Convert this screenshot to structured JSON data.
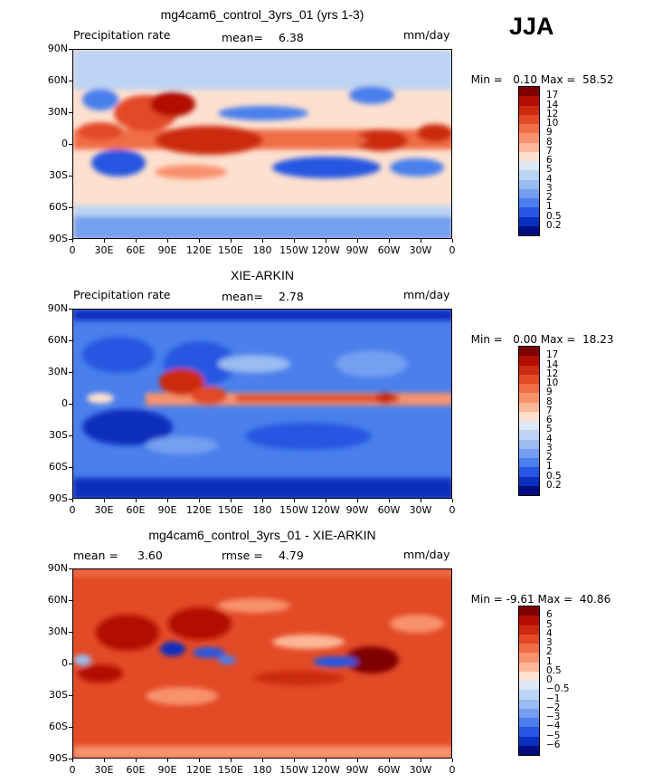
{
  "season": "JJA",
  "units": "mm/day",
  "lat_labels": [
    "90N",
    "60N",
    "30N",
    "0",
    "30S",
    "60S",
    "90S"
  ],
  "lon_labels": [
    "0",
    "30E",
    "60E",
    "90E",
    "120E",
    "150E",
    "180",
    "150W",
    "120W",
    "90W",
    "60W",
    "30W",
    "0"
  ],
  "panels": [
    {
      "title": "mg4cam6_control_3yrs_01 (yrs 1-3)",
      "left_label": "Precipitation rate",
      "stat1_label": "mean=",
      "stat1_value": "6.38",
      "stat2_label": "",
      "stat2_value": "",
      "min_label": "Min =",
      "min_value": "0.10",
      "max_label": "Max =",
      "max_value": "58.52",
      "levels": [
        "17",
        "14",
        "12",
        "10",
        "9",
        "8",
        "7",
        "6",
        "5",
        "4",
        "3",
        "2",
        "1",
        "0.5",
        "0.2"
      ],
      "colors": [
        "#7f0000",
        "#b30d00",
        "#cc2a10",
        "#e34a26",
        "#f06d45",
        "#f8926d",
        "#fdb899",
        "#fde0cf",
        "#dde8f6",
        "#bcd3f3",
        "#9abcf0",
        "#749ff0",
        "#4a7fec",
        "#2856e2",
        "#0a2ebd",
        "#000d80"
      ]
    },
    {
      "title": "XIE-ARKIN",
      "left_label": "Precipitation rate",
      "stat1_label": "mean=",
      "stat1_value": "2.78",
      "stat2_label": "",
      "stat2_value": "",
      "min_label": "Min =",
      "min_value": "0.00",
      "max_label": "Max =",
      "max_value": "18.23",
      "levels": [
        "17",
        "14",
        "12",
        "10",
        "9",
        "8",
        "7",
        "6",
        "5",
        "4",
        "3",
        "2",
        "1",
        "0.5",
        "0.2"
      ],
      "colors": [
        "#7f0000",
        "#b30d00",
        "#cc2a10",
        "#e34a26",
        "#f06d45",
        "#f8926d",
        "#fdb899",
        "#fde0cf",
        "#dde8f6",
        "#bcd3f3",
        "#9abcf0",
        "#749ff0",
        "#4a7fec",
        "#2856e2",
        "#0a2ebd",
        "#000d80"
      ]
    },
    {
      "title": "mg4cam6_control_3yrs_01 - XIE-ARKIN",
      "left_label": "mean =",
      "stat1_label": "",
      "stat1_value": "3.60",
      "stat2_label": "rmse =",
      "stat2_value": "4.79",
      "min_label": "Min =",
      "min_value": "-9.61",
      "max_label": "Max =",
      "max_value": "40.86",
      "levels": [
        "6",
        "5",
        "4",
        "3",
        "2",
        "1",
        "0.5",
        "0",
        "−0.5",
        "−1",
        "−2",
        "−3",
        "−4",
        "−5",
        "−6"
      ],
      "colors": [
        "#7f0000",
        "#b30d00",
        "#cc2a10",
        "#e34a26",
        "#f06d45",
        "#f8926d",
        "#fdb899",
        "#fde0cf",
        "#dde8f6",
        "#bcd3f3",
        "#9abcf0",
        "#749ff0",
        "#4a7fec",
        "#2856e2",
        "#0a2ebd",
        "#000d80"
      ]
    }
  ]
}
